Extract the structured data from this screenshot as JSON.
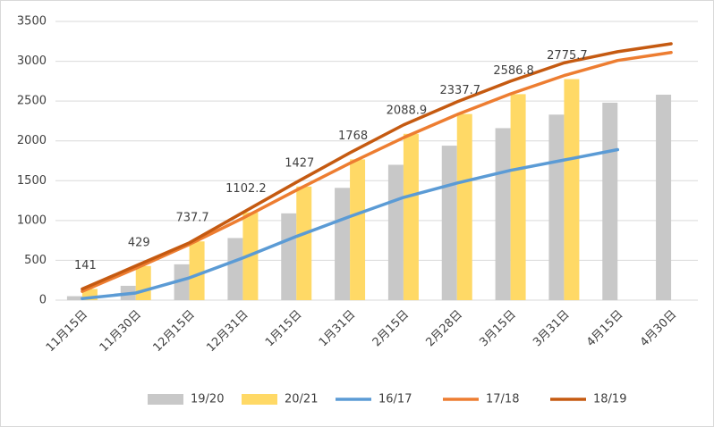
{
  "chart_data": {
    "type": "bar_line",
    "categories": [
      "11月15日",
      "11月30日",
      "12月15日",
      "12月31日",
      "1月15日",
      "1月31日",
      "2月15日",
      "2月28日",
      "3月15日",
      "3月31日",
      "4月15日",
      "4月30日"
    ],
    "series": [
      {
        "name": "19/20",
        "kind": "bar",
        "color": "#c8c8c8",
        "values": [
          50,
          180,
          450,
          780,
          1090,
          1410,
          1700,
          1940,
          2160,
          2330,
          2480,
          2580
        ]
      },
      {
        "name": "20/21",
        "kind": "bar",
        "color": "#ffd966",
        "values": [
          141,
          429,
          737.7,
          1102.2,
          1427,
          1768,
          2088.9,
          2337.7,
          2586.8,
          2775.7,
          null,
          null
        ],
        "labels": true
      },
      {
        "name": "16/17",
        "kind": "line",
        "color": "#5b9bd5",
        "values": [
          20,
          90,
          280,
          530,
          800,
          1050,
          1290,
          1470,
          1630,
          1760,
          1890,
          null
        ]
      },
      {
        "name": "17/18",
        "kind": "line",
        "color": "#ed7d31",
        "values": [
          110,
          400,
          700,
          1030,
          1380,
          1720,
          2040,
          2330,
          2590,
          2820,
          3010,
          3110
        ]
      },
      {
        "name": "18/19",
        "kind": "line",
        "color": "#c55a11",
        "values": [
          140,
          430,
          720,
          1100,
          1480,
          1850,
          2200,
          2490,
          2750,
          2980,
          3120,
          3220
        ]
      }
    ],
    "ylim": [
      0,
      3500
    ],
    "yticks": [
      0,
      500,
      1000,
      1500,
      2000,
      2500,
      3000,
      3500
    ],
    "grid": true,
    "legend": "bottom"
  }
}
